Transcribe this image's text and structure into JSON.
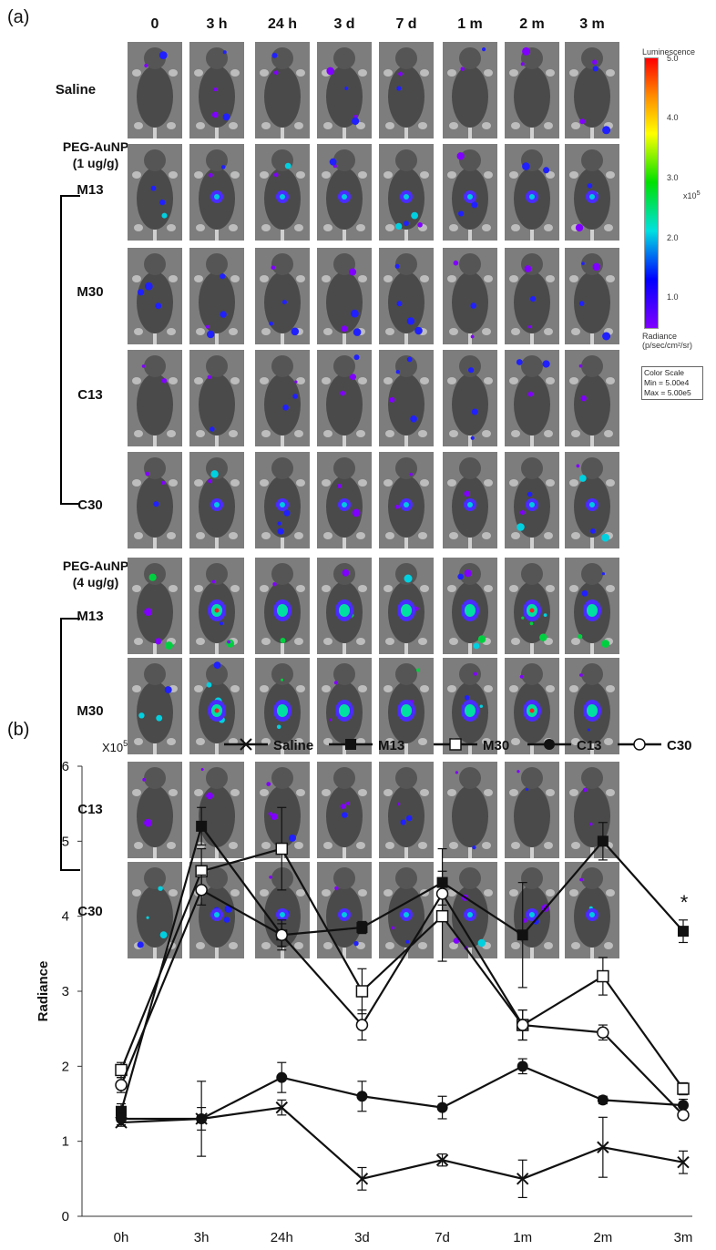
{
  "panel_a": {
    "label": "(a)",
    "columns": [
      "0",
      "3 h",
      "24 h",
      "3 d",
      "7 d",
      "1 m",
      "2 m",
      "3 m"
    ],
    "rows": [
      {
        "label": "Saline"
      },
      {
        "label": "M13"
      },
      {
        "label": "M30"
      },
      {
        "label": "C13"
      },
      {
        "label": "C30"
      },
      {
        "label": "M13"
      },
      {
        "label": "M30"
      },
      {
        "label": "C13"
      },
      {
        "label": "C30"
      }
    ],
    "groups": [
      {
        "line1": "PEG-AuNP",
        "line2": "(1 ug/g)"
      },
      {
        "line1": "PEG-AuNP",
        "line2": "(4 ug/g)"
      }
    ],
    "colorbar": {
      "title": "Luminescence",
      "ticks": [
        "5.0",
        "4.0",
        "3.0",
        "2.0",
        "1.0"
      ],
      "multiplier": "x10",
      "multiplier_exp": "5",
      "axis_label_1": "Radiance",
      "axis_label_2": "(p/sec/cm²/sr)",
      "box_title": "Color Scale",
      "box_min": "Min = 5.00e4",
      "box_max": "Max = 5.00e5",
      "colors": [
        "#ff0000",
        "#ffff00",
        "#00e000",
        "#00e0e0",
        "#0000ff",
        "#8000ff"
      ]
    }
  },
  "panel_b": {
    "label": "(b)"
  },
  "chart_data": {
    "type": "line",
    "categories": [
      "0h",
      "3h",
      "24h",
      "3d",
      "7d",
      "1m",
      "2m",
      "3m"
    ],
    "ylabel": "Radiance",
    "y_multiplier": "X10",
    "y_multiplier_exp": "5",
    "ylim": [
      0,
      6
    ],
    "yticks": [
      "0",
      "1",
      "2",
      "3",
      "4",
      "5",
      "6"
    ],
    "legend_position": "top",
    "annotation": "*",
    "series": [
      {
        "name": "Saline",
        "marker": "x",
        "values": [
          1.25,
          1.3,
          1.45,
          0.5,
          0.75,
          0.5,
          0.92,
          0.72
        ],
        "errors": [
          0.05,
          0.15,
          0.1,
          0.15,
          0.08,
          0.25,
          0.4,
          0.15
        ]
      },
      {
        "name": "M13",
        "marker": "filled-square",
        "values": [
          1.4,
          5.2,
          3.75,
          3.85,
          4.45,
          3.75,
          5.0,
          3.8
        ],
        "errors": [
          0.1,
          0.25,
          0.15,
          0.08,
          0.45,
          0.7,
          0.25,
          0.15
        ]
      },
      {
        "name": "M30",
        "marker": "open-square",
        "values": [
          1.95,
          4.6,
          4.9,
          3.0,
          4.0,
          2.55,
          3.2,
          1.7
        ],
        "errors": [
          0.1,
          0.3,
          0.55,
          0.3,
          0.6,
          0.2,
          0.25,
          0.08
        ]
      },
      {
        "name": "C13",
        "marker": "filled-circle",
        "values": [
          1.3,
          1.3,
          1.85,
          1.6,
          1.45,
          2.0,
          1.55,
          1.48
        ],
        "errors": [
          0.08,
          0.5,
          0.2,
          0.2,
          0.15,
          0.1,
          0.05,
          0.08
        ]
      },
      {
        "name": "C30",
        "marker": "open-circle",
        "values": [
          1.75,
          4.35,
          3.75,
          2.55,
          4.3,
          2.55,
          2.45,
          1.35
        ],
        "errors": [
          0.1,
          0.2,
          0.2,
          0.2,
          0.15,
          0.2,
          0.1,
          0.05
        ]
      }
    ],
    "significance_marker": {
      "text": "*",
      "category": "3m"
    }
  }
}
